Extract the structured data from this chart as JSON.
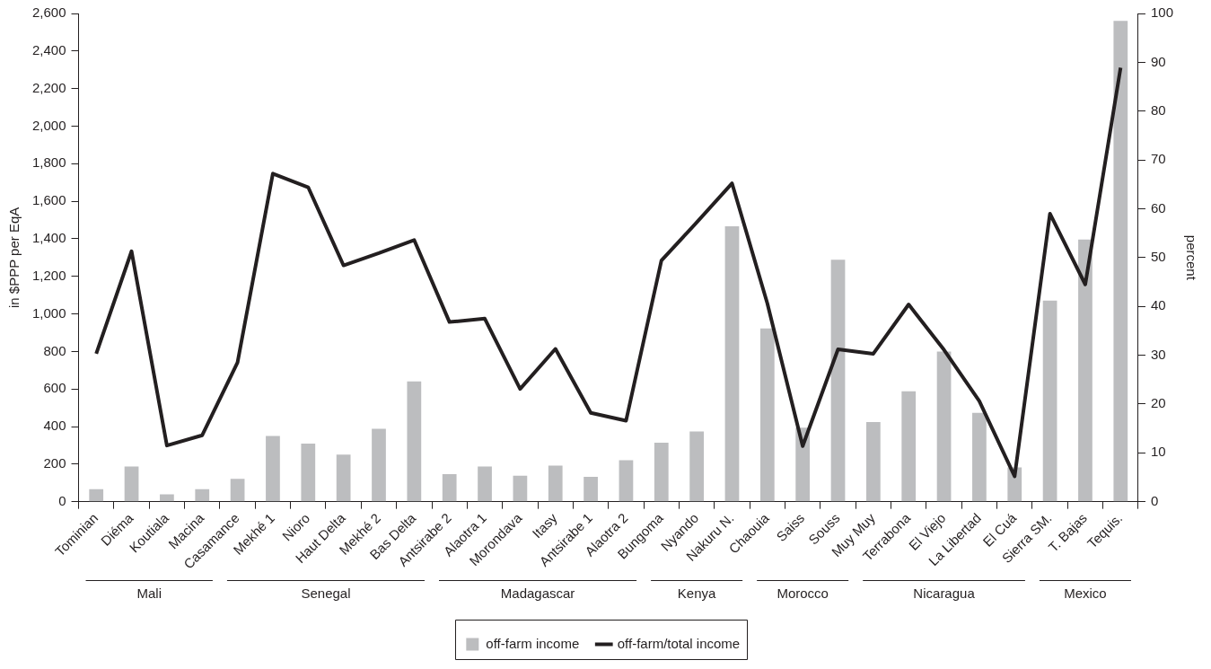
{
  "chart_data": {
    "type": "bar",
    "ylabel": "in $PPP per EqA",
    "y2label": "percent",
    "categories": [
      "Tominian",
      "Diéma",
      "Koutiala",
      "Macina",
      "Casamance",
      "Mekhé 1",
      "Nioro",
      "Haut Delta",
      "Mekhé 2",
      "Bas Delta",
      "Antsirabe 2",
      "Alaotra 1",
      "Morondava",
      "Itasy",
      "Antsirabe 1",
      "Alaotra 2",
      "Bungoma",
      "Nyando",
      "Nakuru N.",
      "Chaouia",
      "Saiss",
      "Souss",
      "Muy Muy",
      "Terrabona",
      "El Viejo",
      "La Libertad",
      "El Cuá",
      "Sierra SM.",
      "T. Bajas",
      "Tequis."
    ],
    "series": [
      {
        "name": "off-farm income",
        "color": "#bcbdbf",
        "values": [
          67,
          187,
          39,
          67,
          122,
          350,
          309,
          251,
          388,
          641,
          147,
          187,
          138,
          192,
          132,
          221,
          314,
          374,
          1467,
          923,
          394,
          1289,
          424,
          588,
          800,
          473,
          182,
          1071,
          1396,
          2560
        ]
      },
      {
        "name": "off-farm/total income",
        "type": "line",
        "axis": "y2",
        "color": "#231f20",
        "values": [
          30.3,
          51.3,
          11.5,
          13.6,
          28.5,
          67.2,
          64.4,
          48.4,
          50.9,
          53.6,
          36.8,
          37.5,
          23.1,
          31.3,
          18.2,
          16.6,
          49.4,
          57.2,
          65.2,
          40.6,
          11.4,
          31.2,
          30.3,
          40.4,
          31.1,
          20.6,
          5.2,
          59,
          44.5,
          88.9
        ]
      }
    ],
    "ylim": [
      0,
      2600
    ],
    "yticks": [
      0,
      200,
      400,
      600,
      800,
      {
        "value": 1000,
        "label": "1,000"
      },
      {
        "value": 1200,
        "label": "1,200"
      },
      {
        "value": 1400,
        "label": "1,400"
      },
      {
        "value": 1600,
        "label": "1,600"
      },
      {
        "value": 1800,
        "label": "1,800"
      },
      {
        "value": 2000,
        "label": "2,000"
      },
      {
        "value": 2200,
        "label": "2,200"
      },
      {
        "value": 2400,
        "label": "2,400"
      },
      {
        "value": 2600,
        "label": "2,600"
      }
    ],
    "y2lim": [
      0,
      100
    ],
    "y2ticks": [
      0,
      10,
      20,
      30,
      40,
      50,
      60,
      70,
      80,
      90,
      100
    ],
    "annotations": [
      "Mali",
      "Senegal",
      "Madagascar",
      "Kenya",
      "Morocco",
      "Nicaragua",
      "Mexico"
    ],
    "legend": "bottom",
    "grid": false,
    "marker": "none"
  }
}
